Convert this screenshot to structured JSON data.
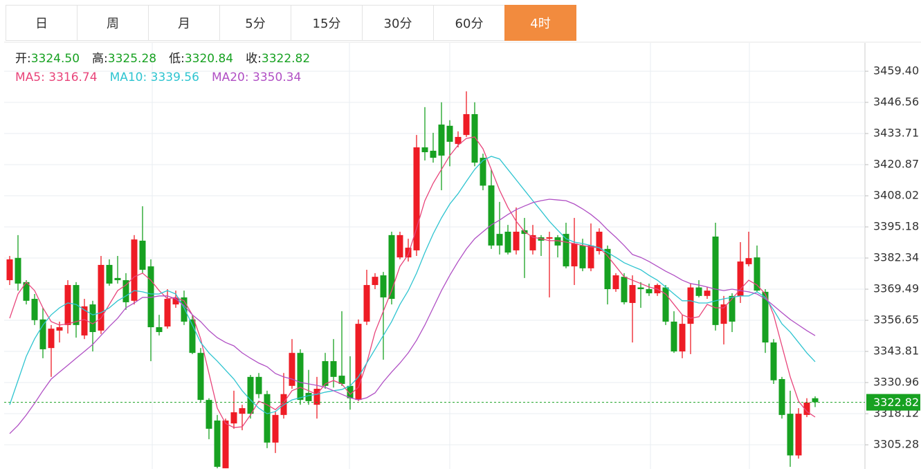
{
  "tabs": [
    "日",
    "周",
    "月",
    "5分",
    "15分",
    "30分",
    "60分",
    "4时"
  ],
  "active_tab": 7,
  "chart_data": {
    "type": "candlestick",
    "ohlc_legend": [
      {
        "label": "开:",
        "value": "3324.50"
      },
      {
        "label": "高:",
        "value": "3325.28"
      },
      {
        "label": "低:",
        "value": "3320.84"
      },
      {
        "label": "收:",
        "value": "3322.82"
      }
    ],
    "up_color": "#ee1c25",
    "down_color": "#17a121",
    "open": [
      3373.2,
      3382.4,
      3372.4,
      3365.5,
      3357.0,
      3345.2,
      3352.4,
      3354.7,
      3371.2,
      3350.4,
      3363.2,
      3352.4,
      3379.5,
      3374.1,
      3373.2,
      3364.7,
      3389.5,
      3378.9,
      3353.8,
      3354.1,
      3363.2,
      3366.1,
      3357.0,
      3343.2,
      3323.8,
      3315.3,
      3295.6,
      3314.1,
      3318.1,
      3333.3,
      3333.3,
      3326.2,
      3306.2,
      3317.6,
      3329.6,
      3343.2,
      3326.7,
      3321.8,
      3339.8,
      3339.8,
      3333.8,
      3329.6,
      3323.8,
      3356.1,
      3371.2,
      3375.2,
      3391.8,
      3382.6,
      3382.6,
      3385.5,
      3428.0,
      3426.6,
      3437.4,
      3436.9,
      3429.4,
      3433.1,
      3441.7,
      3423.7,
      3412.3,
      3392.3,
      3393.2,
      3385.5,
      3393.8,
      3385.5,
      3390.9,
      3390.3,
      3390.9,
      3392.3,
      3378.9,
      3387.5,
      3378.1,
      3385.2,
      3386.1,
      3369.5,
      3374.6,
      3363.8,
      3370.2,
      3369.5,
      3367.8,
      3370.2,
      3356.1,
      3343.8,
      3355.2,
      3370.2,
      3366.7,
      3391.2,
      3355.2,
      3366.7,
      3366.7,
      3379.8,
      3382.6,
      3368.4,
      3347.5,
      3332.4,
      3318.1,
      3300.9,
      3317.6,
      3324.5
    ],
    "high": [
      3383.2,
      3391.8,
      3373.2,
      3367.5,
      3361.8,
      3354.7,
      3356.1,
      3373.2,
      3372.4,
      3365.5,
      3364.7,
      3383.2,
      3381.8,
      3383.2,
      3376.1,
      3391.8,
      3403.7,
      3381.8,
      3358.9,
      3369.5,
      3368.9,
      3368.9,
      3358.9,
      3345.2,
      3324.5,
      3317.6,
      3316.1,
      3327.6,
      3321.8,
      3334.1,
      3334.9,
      3327.6,
      3319.0,
      3334.9,
      3348.9,
      3344.7,
      3336.2,
      3333.3,
      3343.2,
      3348.9,
      3360.4,
      3341.8,
      3357.0,
      3377.5,
      3376.1,
      3376.6,
      3393.2,
      3393.2,
      3390.3,
      3433.1,
      3444.6,
      3434.0,
      3446.6,
      3439.2,
      3434.6,
      3451.1,
      3446.6,
      3425.4,
      3418.9,
      3405.5,
      3396.0,
      3403.2,
      3398.9,
      3396.0,
      3391.8,
      3393.2,
      3391.8,
      3396.9,
      3398.9,
      3390.3,
      3396.6,
      3394.6,
      3387.5,
      3376.1,
      3376.1,
      3375.2,
      3372.4,
      3371.8,
      3371.8,
      3371.2,
      3360.4,
      3358.9,
      3371.8,
      3373.2,
      3370.2,
      3396.9,
      3366.7,
      3367.8,
      3388.9,
      3393.2,
      3387.5,
      3369.5,
      3348.9,
      3333.3,
      3327.6,
      3320.4,
      3324.5,
      3325.28
    ],
    "low": [
      3371.2,
      3368.9,
      3363.2,
      3354.7,
      3341.0,
      3333.3,
      3347.5,
      3351.2,
      3349.5,
      3348.9,
      3343.8,
      3351.0,
      3370.9,
      3371.8,
      3361.0,
      3363.2,
      3376.1,
      3339.8,
      3350.4,
      3353.2,
      3361.8,
      3354.7,
      3342.7,
      3322.7,
      3307.6,
      3295.6,
      3295.6,
      3311.9,
      3311.3,
      3316.1,
      3324.5,
      3303.9,
      3301.9,
      3316.1,
      3328.4,
      3321.8,
      3321.8,
      3316.1,
      3328.4,
      3328.9,
      3329.6,
      3319.8,
      3323.3,
      3354.7,
      3369.5,
      3340.4,
      3363.2,
      3381.8,
      3380.9,
      3383.2,
      3422.6,
      3421.7,
      3410.3,
      3420.2,
      3428.0,
      3432.3,
      3420.2,
      3410.3,
      3386.1,
      3383.8,
      3383.8,
      3383.8,
      3374.1,
      3383.8,
      3383.2,
      3366.1,
      3382.6,
      3378.1,
      3371.2,
      3376.9,
      3376.9,
      3383.8,
      3363.2,
      3368.4,
      3363.2,
      3347.5,
      3361.8,
      3366.7,
      3366.7,
      3354.7,
      3343.2,
      3341.0,
      3342.7,
      3366.1,
      3365.5,
      3352.4,
      3346.7,
      3351.8,
      3363.8,
      3378.9,
      3368.4,
      3343.2,
      3330.4,
      3316.1,
      3296.2,
      3299.6,
      3316.7,
      3320.84
    ],
    "close": [
      3381.8,
      3371.8,
      3364.7,
      3356.7,
      3344.7,
      3353.2,
      3353.8,
      3371.2,
      3354.7,
      3362.4,
      3351.8,
      3379.5,
      3371.8,
      3373.2,
      3364.1,
      3390.0,
      3377.5,
      3353.8,
      3351.8,
      3365.5,
      3366.1,
      3356.1,
      3343.2,
      3323.8,
      3311.9,
      3296.2,
      3315.3,
      3318.7,
      3320.4,
      3318.1,
      3326.2,
      3306.2,
      3317.6,
      3326.2,
      3343.2,
      3323.8,
      3323.3,
      3328.4,
      3329.6,
      3333.3,
      3330.4,
      3324.5,
      3355.2,
      3371.2,
      3374.6,
      3366.1,
      3365.5,
      3391.8,
      3386.6,
      3428.0,
      3426.0,
      3423.7,
      3424.6,
      3430.3,
      3432.3,
      3441.7,
      3421.7,
      3412.2,
      3387.5,
      3387.5,
      3384.6,
      3393.2,
      3392.3,
      3391.8,
      3389.5,
      3390.9,
      3387.5,
      3378.9,
      3388.3,
      3378.1,
      3387.5,
      3393.2,
      3369.5,
      3375.2,
      3364.1,
      3371.2,
      3369.5,
      3367.8,
      3371.2,
      3356.1,
      3343.8,
      3355.2,
      3370.2,
      3366.7,
      3368.9,
      3354.7,
      3363.2,
      3356.1,
      3380.9,
      3382.3,
      3368.9,
      3347.5,
      3331.9,
      3317.6,
      3300.9,
      3318.1,
      3322.7,
      3322.82
    ],
    "series": [
      {
        "name": "MA5:",
        "color": "#e8447a",
        "value_label": "3316.74",
        "values": [
          3357.5,
          3367.5,
          3372.4,
          3368.9,
          3361.8,
          3356.1,
          3354.7,
          3355.2,
          3356.1,
          3357.0,
          3355.2,
          3357.5,
          3363.2,
          3368.9,
          3371.2,
          3374.6,
          3376.1,
          3373.2,
          3368.9,
          3365.5,
          3366.1,
          3364.7,
          3358.9,
          3349.0,
          3334.7,
          3320.4,
          3314.1,
          3312.4,
          3312.7,
          3317.6,
          3323.3,
          3321.8,
          3319.8,
          3322.7,
          3327.6,
          3329.0,
          3327.6,
          3326.1,
          3330.4,
          3331.8,
          3330.4,
          3326.1,
          3329.0,
          3339.0,
          3351.8,
          3360.4,
          3368.9,
          3378.9,
          3383.8,
          3394.6,
          3406.0,
          3413.2,
          3418.9,
          3424.6,
          3428.9,
          3431.7,
          3432.3,
          3427.4,
          3418.9,
          3410.3,
          3403.2,
          3397.5,
          3393.2,
          3390.9,
          3390.3,
          3389.5,
          3389.5,
          3388.9,
          3388.3,
          3387.5,
          3386.9,
          3386.6,
          3383.2,
          3378.9,
          3374.6,
          3373.2,
          3371.8,
          3370.4,
          3369.5,
          3367.5,
          3363.2,
          3358.9,
          3357.5,
          3358.1,
          3363.2,
          3361.8,
          3361.8,
          3365.5,
          3369.5,
          3373.2,
          3371.2,
          3367.5,
          3358.9,
          3346.1,
          3333.3,
          3323.3,
          3319.0,
          3316.74
        ]
      },
      {
        "name": "MA10:",
        "color": "#2ec4d0",
        "value_label": "3339.56",
        "values": [
          3321.8,
          3331.8,
          3341.8,
          3349.0,
          3354.7,
          3358.9,
          3361.8,
          3363.8,
          3363.2,
          3360.9,
          3358.9,
          3359.8,
          3361.8,
          3364.7,
          3366.7,
          3368.9,
          3368.4,
          3367.5,
          3367.5,
          3368.9,
          3367.5,
          3361.8,
          3354.7,
          3347.5,
          3343.2,
          3339.8,
          3336.1,
          3332.4,
          3327.6,
          3323.8,
          3320.4,
          3318.1,
          3319.0,
          3321.8,
          3323.8,
          3324.7,
          3325.6,
          3326.1,
          3327.0,
          3327.6,
          3328.1,
          3329.6,
          3333.3,
          3339.0,
          3344.7,
          3350.4,
          3356.1,
          3363.2,
          3368.9,
          3376.1,
          3384.6,
          3392.3,
          3398.9,
          3404.6,
          3408.9,
          3414.0,
          3418.9,
          3422.6,
          3424.3,
          3423.2,
          3418.9,
          3414.6,
          3410.3,
          3406.0,
          3401.8,
          3397.5,
          3393.8,
          3390.3,
          3388.9,
          3388.3,
          3387.5,
          3386.6,
          3384.6,
          3382.6,
          3380.4,
          3378.9,
          3377.5,
          3375.2,
          3373.2,
          3370.4,
          3367.5,
          3364.7,
          3364.7,
          3363.8,
          3363.8,
          3364.7,
          3365.5,
          3366.1,
          3366.7,
          3366.7,
          3368.4,
          3366.1,
          3360.9,
          3355.2,
          3351.8,
          3347.5,
          3343.2,
          3339.56
        ]
      },
      {
        "name": "MA20:",
        "color": "#b04fc4",
        "value_label": "3350.34",
        "values": [
          3309.9,
          3313.3,
          3317.6,
          3322.4,
          3327.6,
          3332.4,
          3335.3,
          3338.1,
          3341.0,
          3343.8,
          3346.7,
          3350.4,
          3354.1,
          3357.5,
          3361.8,
          3363.8,
          3366.1,
          3366.1,
          3366.7,
          3366.7,
          3365.5,
          3362.7,
          3358.9,
          3356.1,
          3352.4,
          3349.5,
          3347.5,
          3346.1,
          3343.2,
          3341.0,
          3339.0,
          3337.5,
          3334.7,
          3333.3,
          3332.4,
          3331.0,
          3330.4,
          3329.8,
          3329.0,
          3327.6,
          3326.1,
          3324.7,
          3323.8,
          3324.7,
          3326.7,
          3331.3,
          3335.3,
          3339.0,
          3343.2,
          3348.4,
          3354.7,
          3361.8,
          3368.9,
          3375.2,
          3380.9,
          3386.1,
          3390.3,
          3393.2,
          3396.0,
          3398.0,
          3400.3,
          3402.3,
          3403.8,
          3405.2,
          3406.0,
          3406.6,
          3406.3,
          3406.0,
          3404.6,
          3402.6,
          3400.3,
          3397.5,
          3394.0,
          3390.9,
          3387.5,
          3383.8,
          3382.6,
          3380.9,
          3378.9,
          3376.9,
          3375.2,
          3373.2,
          3371.8,
          3371.2,
          3370.4,
          3369.5,
          3368.9,
          3369.5,
          3368.9,
          3368.4,
          3367.5,
          3365.5,
          3362.7,
          3359.8,
          3357.0,
          3354.7,
          3352.4,
          3350.34
        ]
      }
    ],
    "last_price": 3322.82,
    "last_price_color": "#17a121",
    "ylim": [
      3295.3,
      3471.1
    ],
    "yticks": [
      {
        "value": 3459.4,
        "label": "3459.40"
      },
      3446.56,
      3433.71,
      3420.87,
      3408.02,
      3395.18,
      3382.34,
      3369.49,
      3356.65,
      3343.81,
      3330.96,
      3318.12,
      3305.28
    ],
    "grid": true
  }
}
